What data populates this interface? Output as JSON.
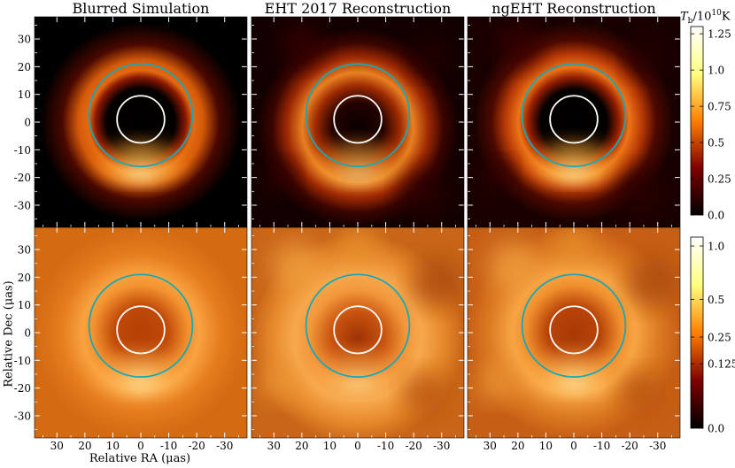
{
  "chart_data": {
    "type": "heatmap",
    "panel_titles": [
      "Blurred Simulation",
      "EHT 2017 Reconstruction",
      "ngEHT Reconstruction"
    ],
    "rows": [
      {
        "scale": "linear",
        "colorbar": {
          "ticks": [
            "0.0",
            "0.25",
            "0.5",
            "0.75",
            "1.0",
            "1.25"
          ],
          "values": [
            0.0,
            0.25,
            0.5,
            0.75,
            1.0,
            1.25
          ],
          "range": [
            0,
            1.3
          ],
          "label": "T_b/10^10 K"
        }
      },
      {
        "scale": "sqrt",
        "colorbar": {
          "ticks": [
            "0.0",
            "0.125",
            "0.25",
            "0.5",
            "1.0"
          ],
          "values": [
            0.0,
            0.125,
            0.25,
            0.5,
            1.0
          ],
          "range": [
            0,
            1.1
          ]
        }
      }
    ],
    "colorbar_label": {
      "main": "T",
      "sub": "b",
      "rest": "/10",
      "sup": "10",
      "unit": "K"
    },
    "x_axis": {
      "label": "Relative RA (μas)",
      "ticks": [
        30,
        20,
        10,
        0,
        -10,
        -20,
        -30
      ],
      "range": [
        38,
        -38
      ],
      "reversed": true
    },
    "y_axis": {
      "label": "Relative Dec (μas)",
      "ticks": [
        30,
        20,
        10,
        0,
        -10,
        -20,
        -30
      ],
      "range": [
        -38,
        38
      ]
    },
    "circles": [
      {
        "color": "#17a8b8",
        "center": [
          0,
          2.5
        ],
        "radius": 18.5
      },
      {
        "color": "#ffffff",
        "center": [
          0,
          1
        ],
        "radius": 8.5
      }
    ],
    "colormap": "afmhot"
  }
}
